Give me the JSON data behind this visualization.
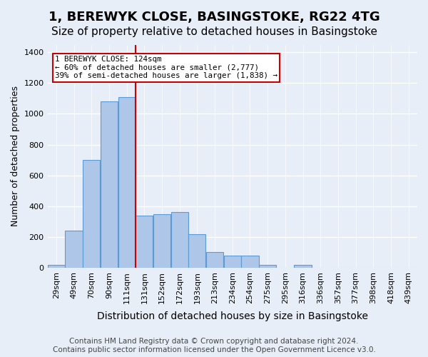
{
  "title": "1, BEREWYK CLOSE, BASINGSTOKE, RG22 4TG",
  "subtitle": "Size of property relative to detached houses in Basingstoke",
  "xlabel": "Distribution of detached houses by size in Basingstoke",
  "ylabel": "Number of detached properties",
  "footer_line1": "Contains HM Land Registry data © Crown copyright and database right 2024.",
  "footer_line2": "Contains public sector information licensed under the Open Government Licence v3.0.",
  "bin_labels": [
    "29sqm",
    "49sqm",
    "70sqm",
    "90sqm",
    "111sqm",
    "131sqm",
    "152sqm",
    "172sqm",
    "193sqm",
    "213sqm",
    "234sqm",
    "254sqm",
    "275sqm",
    "295sqm",
    "316sqm",
    "336sqm",
    "357sqm",
    "377sqm",
    "398sqm",
    "418sqm",
    "439sqm"
  ],
  "bar_values": [
    20,
    240,
    700,
    1080,
    1110,
    340,
    350,
    360,
    220,
    100,
    80,
    80,
    20,
    0,
    20,
    0,
    0,
    0,
    0,
    0,
    0
  ],
  "bar_color": "#aec6e8",
  "bar_edge_color": "#5b9bd5",
  "ylim": [
    0,
    1450
  ],
  "yticks": [
    0,
    200,
    400,
    600,
    800,
    1000,
    1200,
    1400
  ],
  "property_line_color": "#cc0000",
  "property_line_x": 4.49,
  "annotation_text_line1": "1 BEREWYK CLOSE: 124sqm",
  "annotation_text_line2": "← 60% of detached houses are smaller (2,777)",
  "annotation_text_line3": "39% of semi-detached houses are larger (1,838) →",
  "annotation_box_color": "#ffffff",
  "annotation_box_edge": "#cc0000",
  "background_color": "#e8eef7",
  "plot_background": "#e8eef7",
  "grid_color": "#ffffff",
  "title_fontsize": 13,
  "subtitle_fontsize": 11,
  "xlabel_fontsize": 10,
  "ylabel_fontsize": 9,
  "tick_fontsize": 8,
  "footer_fontsize": 7.5
}
